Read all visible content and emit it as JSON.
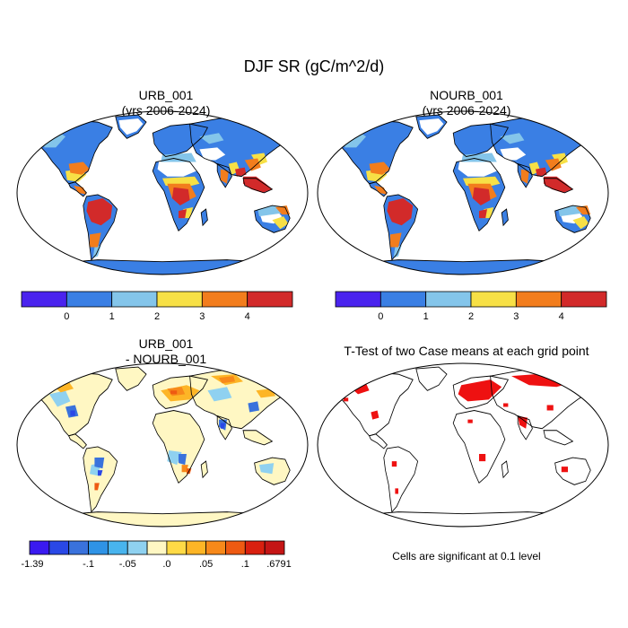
{
  "figure": {
    "title": "DJF SR (gC/m^2/d)"
  },
  "panels": {
    "top_left": {
      "title": "URB_001",
      "subtitle": "(yrs 2006-2024)"
    },
    "top_right": {
      "title": "NOURB_001",
      "subtitle": "(yrs 2006-2024)"
    },
    "bottom_left": {
      "title": "URB_001",
      "subtitle": "- NOURB_001"
    },
    "bottom_right": {
      "title": "T-Test of two Case means at each grid point",
      "note": "Cells are significant at 0.1 level"
    }
  },
  "colorbars": {
    "main": {
      "colors": [
        "#4a23ee",
        "#3a7fe4",
        "#84c5ea",
        "#f7e046",
        "#f27d1d",
        "#d22a2a"
      ],
      "labels": [
        "0",
        "1",
        "2",
        "3",
        "4"
      ]
    },
    "diff": {
      "colors": [
        "#3a1af0",
        "#2a48e6",
        "#3a72dc",
        "#2f93e6",
        "#48b4ee",
        "#8fd1f0",
        "#fff7c3",
        "#ffda46",
        "#fdb526",
        "#f7891a",
        "#ee5a12",
        "#d9200f",
        "#c51515"
      ],
      "labels": [
        "-1.39",
        "-.1",
        "-.05",
        ".0",
        ".05",
        ".1",
        ".6791"
      ]
    }
  }
}
